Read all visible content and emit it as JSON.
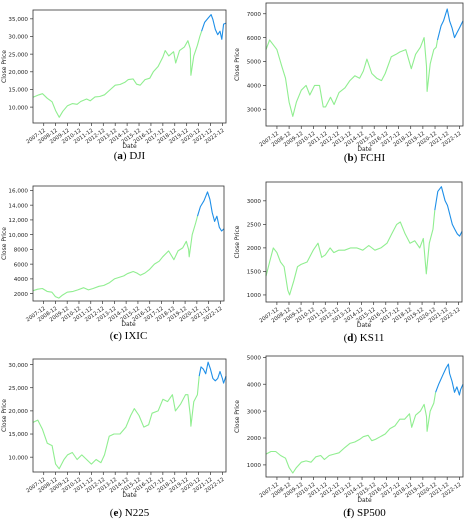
{
  "chart_data": [
    {
      "type": "line",
      "caption": {
        "letter": "a",
        "name": "DJI"
      },
      "xlabel": "Date",
      "ylabel": "Close Price",
      "x_ticks": [
        "2007-12",
        "2008-12",
        "2009-12",
        "2010-12",
        "2011-12",
        "2012-12",
        "2013-12",
        "2014-12",
        "2015-12",
        "2016-12",
        "2017-12",
        "2018-12",
        "2019-12",
        "2020-12",
        "2021-12",
        "2022-12"
      ],
      "y_ticks": [
        {
          "v": 10000,
          "label": "10,000"
        },
        {
          "v": 15000,
          "label": "15,000"
        },
        {
          "v": 20000,
          "label": "20,000"
        },
        {
          "v": 25000,
          "label": "25,000"
        },
        {
          "v": 30000,
          "label": "30,000"
        },
        {
          "v": 35000,
          "label": "35,000"
        }
      ],
      "xlim": [
        2007.0,
        2023.2
      ],
      "ylim": [
        5500,
        37500
      ],
      "series": [
        {
          "color": "#90ee90",
          "x": [
            2007.0,
            2007.5,
            2007.8,
            2008.2,
            2008.6,
            2008.9,
            2009.2,
            2009.5,
            2009.9,
            2010.3,
            2010.7,
            2011.0,
            2011.5,
            2011.8,
            2012.2,
            2012.6,
            2013.0,
            2013.5,
            2013.9,
            2014.3,
            2014.7,
            2015.0,
            2015.4,
            2015.7,
            2016.0,
            2016.4,
            2016.8,
            2017.1,
            2017.5,
            2017.9,
            2018.1,
            2018.4,
            2018.8,
            2018.98,
            2019.3,
            2019.7,
            2020.0,
            2020.2,
            2020.25,
            2020.5,
            2020.8,
            2021.0,
            2021.15
          ],
          "y": [
            12800,
            13500,
            13800,
            12500,
            11500,
            9000,
            7100,
            8800,
            10400,
            11000,
            10800,
            11600,
            12300,
            11800,
            12900,
            13000,
            13500,
            15000,
            16200,
            16400,
            17000,
            17800,
            18000,
            16500,
            16200,
            17800,
            18200,
            20000,
            21500,
            24200,
            26000,
            24500,
            25700,
            22500,
            26000,
            27000,
            28800,
            26500,
            19000,
            24500,
            27500,
            30000,
            31500
          ]
        },
        {
          "color": "#1e8fe8",
          "x": [
            2021.15,
            2021.4,
            2021.7,
            2021.95,
            2022.1,
            2022.3,
            2022.5,
            2022.7,
            2022.85,
            2023.0,
            2023.2
          ],
          "y": [
            31500,
            34000,
            35200,
            36200,
            34800,
            32000,
            30500,
            31500,
            29200,
            33500,
            33800
          ]
        }
      ]
    },
    {
      "type": "line",
      "caption": {
        "letter": "b",
        "name": "FCHI"
      },
      "xlabel": "Date",
      "ylabel": "Close Price",
      "x_ticks": [
        "2007-12",
        "2008-12",
        "2009-12",
        "2010-12",
        "2011-12",
        "2012-12",
        "2013-12",
        "2014-12",
        "2015-12",
        "2016-12",
        "2017-12",
        "2018-12",
        "2019-12",
        "2020-12",
        "2021-12",
        "2022-12"
      ],
      "y_ticks": [
        {
          "v": 3000,
          "label": "3000"
        },
        {
          "v": 4000,
          "label": "4000"
        },
        {
          "v": 5000,
          "label": "5000"
        },
        {
          "v": 6000,
          "label": "6000"
        },
        {
          "v": 7000,
          "label": "7000"
        }
      ],
      "xlim": [
        2007.0,
        2023.2
      ],
      "ylim": [
        2300,
        7450
      ],
      "series": [
        {
          "color": "#90ee90",
          "x": [
            2007.0,
            2007.3,
            2007.6,
            2007.9,
            2008.3,
            2008.6,
            2008.9,
            2009.2,
            2009.5,
            2009.9,
            2010.3,
            2010.6,
            2011.0,
            2011.4,
            2011.7,
            2011.9,
            2012.3,
            2012.6,
            2013.0,
            2013.5,
            2013.9,
            2014.3,
            2014.7,
            2015.0,
            2015.3,
            2015.7,
            2016.1,
            2016.5,
            2016.8,
            2017.3,
            2017.7,
            2018.0,
            2018.5,
            2018.95,
            2019.3,
            2019.7,
            2020.0,
            2020.2,
            2020.25,
            2020.5,
            2020.8,
            2021.0,
            2021.1
          ],
          "y": [
            5500,
            5900,
            5700,
            5500,
            4800,
            4300,
            3300,
            2700,
            3300,
            3800,
            4000,
            3600,
            4000,
            4000,
            3100,
            3100,
            3500,
            3200,
            3700,
            3900,
            4200,
            4400,
            4300,
            4600,
            5100,
            4500,
            4300,
            4200,
            4500,
            5200,
            5300,
            5400,
            5500,
            4700,
            5300,
            5600,
            6000,
            4800,
            3750,
            4900,
            5500,
            5600,
            5900
          ]
        },
        {
          "color": "#1e8fe8",
          "x": [
            2021.1,
            2021.4,
            2021.6,
            2021.9,
            2022.1,
            2022.3,
            2022.5,
            2022.7,
            2022.9,
            2023.1,
            2023.2
          ],
          "y": [
            5900,
            6500,
            6700,
            7200,
            6700,
            6400,
            6000,
            6200,
            6400,
            6600,
            6700
          ]
        }
      ]
    },
    {
      "type": "line",
      "caption": {
        "letter": "c",
        "name": "IXIC"
      },
      "xlabel": "Date",
      "ylabel": "Close Price",
      "x_ticks": [
        "2007-12",
        "2008-12",
        "2009-12",
        "2010-12",
        "2011-12",
        "2012-12",
        "2013-12",
        "2014-12",
        "2015-12",
        "2016-12",
        "2017-12",
        "2018-12",
        "2019-12",
        "2020-12",
        "2021-12",
        "2022-12"
      ],
      "y_ticks": [
        {
          "v": 2000,
          "label": "2000"
        },
        {
          "v": 4000,
          "label": "4000"
        },
        {
          "v": 6000,
          "label": "6000"
        },
        {
          "v": 8000,
          "label": "8000"
        },
        {
          "v": 10000,
          "label": "10,000"
        },
        {
          "v": 12000,
          "label": "12,000"
        },
        {
          "v": 14000,
          "label": "14,000"
        },
        {
          "v": 16000,
          "label": "16,000"
        }
      ],
      "xlim": [
        2007.0,
        2023.2
      ],
      "ylim": [
        1000,
        16600
      ],
      "series": [
        {
          "color": "#90ee90",
          "x": [
            2007.0,
            2007.4,
            2007.8,
            2008.2,
            2008.6,
            2008.9,
            2009.2,
            2009.5,
            2009.9,
            2010.4,
            2010.8,
            2011.3,
            2011.7,
            2012.1,
            2012.6,
            2013.0,
            2013.5,
            2013.9,
            2014.3,
            2014.7,
            2015.0,
            2015.5,
            2015.8,
            2016.1,
            2016.5,
            2016.9,
            2017.3,
            2017.7,
            2018.0,
            2018.5,
            2018.95,
            2019.3,
            2019.7,
            2020.0,
            2020.2,
            2020.25,
            2020.5,
            2020.8,
            2020.95
          ],
          "y": [
            2400,
            2600,
            2700,
            2300,
            2200,
            1600,
            1400,
            1800,
            2200,
            2300,
            2500,
            2800,
            2500,
            2700,
            3000,
            3100,
            3500,
            4000,
            4200,
            4400,
            4700,
            5000,
            4800,
            4500,
            4800,
            5300,
            6000,
            6400,
            7000,
            7800,
            6600,
            7800,
            8200,
            9100,
            8000,
            7000,
            10000,
            11600,
            12500
          ]
        },
        {
          "color": "#1e8fe8",
          "x": [
            2020.95,
            2021.2,
            2021.5,
            2021.8,
            2022.0,
            2022.2,
            2022.4,
            2022.6,
            2022.8,
            2023.0,
            2023.2
          ],
          "y": [
            12500,
            13800,
            14600,
            15800,
            14800,
            13000,
            11800,
            12500,
            11000,
            10500,
            10800
          ]
        }
      ]
    },
    {
      "type": "line",
      "caption": {
        "letter": "d",
        "name": "KS11"
      },
      "xlabel": "Date",
      "ylabel": "Close Price",
      "x_ticks": [
        "2007-12",
        "2008-12",
        "2009-12",
        "2010-12",
        "2011-12",
        "2012-12",
        "2013-12",
        "2014-12",
        "2015-12",
        "2016-12",
        "2017-12",
        "2018-12",
        "2019-12",
        "2020-12",
        "2021-12",
        "2022-12"
      ],
      "y_ticks": [
        {
          "v": 1000,
          "label": "1000"
        },
        {
          "v": 1500,
          "label": "1500"
        },
        {
          "v": 2000,
          "label": "2000"
        },
        {
          "v": 2500,
          "label": "2500"
        },
        {
          "v": 3000,
          "label": "3000"
        }
      ],
      "xlim": [
        2007.0,
        2023.2
      ],
      "ylim": [
        850,
        3400
      ],
      "series": [
        {
          "color": "#90ee90",
          "x": [
            2007.0,
            2007.3,
            2007.6,
            2007.9,
            2008.2,
            2008.5,
            2008.8,
            2008.95,
            2009.3,
            2009.6,
            2009.9,
            2010.4,
            2010.9,
            2011.3,
            2011.6,
            2011.9,
            2012.3,
            2012.6,
            2013.0,
            2013.5,
            2014.0,
            2014.5,
            2015.0,
            2015.5,
            2016.0,
            2016.5,
            2017.0,
            2017.4,
            2017.8,
            2018.1,
            2018.5,
            2018.9,
            2019.3,
            2019.7,
            2020.0,
            2020.2,
            2020.25,
            2020.5,
            2020.8,
            2020.95
          ],
          "y": [
            1400,
            1700,
            2000,
            1900,
            1700,
            1600,
            1100,
            1000,
            1300,
            1600,
            1650,
            1700,
            1950,
            2100,
            1800,
            1850,
            2000,
            1900,
            1950,
            1950,
            2000,
            2000,
            1950,
            2050,
            1950,
            2000,
            2100,
            2300,
            2500,
            2550,
            2300,
            2100,
            2150,
            2000,
            2200,
            1600,
            1450,
            2100,
            2400,
            2800
          ]
        },
        {
          "color": "#1e8fe8",
          "x": [
            2020.95,
            2021.2,
            2021.5,
            2021.8,
            2022.0,
            2022.2,
            2022.4,
            2022.6,
            2022.8,
            2023.0,
            2023.2
          ],
          "y": [
            2800,
            3200,
            3300,
            3000,
            2900,
            2700,
            2500,
            2400,
            2300,
            2250,
            2350
          ]
        }
      ]
    },
    {
      "type": "line",
      "caption": {
        "letter": "e",
        "name": "N225"
      },
      "xlabel": "Date",
      "ylabel": "Close Price",
      "x_ticks": [
        "2007-12",
        "2008-12",
        "2009-12",
        "2010-12",
        "2011-12",
        "2012-12",
        "2013-12",
        "2014-12",
        "2015-12",
        "2016-12",
        "2017-12",
        "2018-12",
        "2019-12",
        "2020-12",
        "2021-12",
        "2022-12"
      ],
      "y_ticks": [
        {
          "v": 10000,
          "label": "10,000"
        },
        {
          "v": 15000,
          "label": "15,000"
        },
        {
          "v": 20000,
          "label": "20,000"
        },
        {
          "v": 25000,
          "label": "25,000"
        },
        {
          "v": 30000,
          "label": "30,000"
        }
      ],
      "xlim": [
        2007.0,
        2023.2
      ],
      "ylim": [
        6800,
        31200
      ],
      "series": [
        {
          "color": "#90ee90",
          "x": [
            2007.0,
            2007.4,
            2007.8,
            2008.2,
            2008.6,
            2008.9,
            2009.2,
            2009.6,
            2009.9,
            2010.3,
            2010.7,
            2011.1,
            2011.5,
            2011.9,
            2012.3,
            2012.7,
            2013.0,
            2013.4,
            2013.8,
            2014.3,
            2014.8,
            2015.2,
            2015.5,
            2015.9,
            2016.3,
            2016.7,
            2017.0,
            2017.5,
            2017.9,
            2018.3,
            2018.7,
            2018.95,
            2019.4,
            2019.8,
            2020.0,
            2020.2,
            2020.25,
            2020.5,
            2020.8,
            2020.95
          ],
          "y": [
            17500,
            18000,
            16000,
            13000,
            12500,
            8500,
            7500,
            9500,
            10500,
            11000,
            9500,
            10500,
            9500,
            8500,
            9500,
            8800,
            10500,
            14500,
            15000,
            15000,
            16500,
            19000,
            20500,
            19000,
            16500,
            17000,
            19500,
            20000,
            22500,
            22000,
            23500,
            20000,
            21500,
            23500,
            23500,
            19000,
            16700,
            22000,
            23500,
            27500
          ]
        },
        {
          "color": "#1e8fe8",
          "x": [
            2020.95,
            2021.1,
            2021.3,
            2021.5,
            2021.7,
            2021.9,
            2022.1,
            2022.3,
            2022.5,
            2022.7,
            2022.9,
            2023.0,
            2023.2
          ],
          "y": [
            27500,
            29500,
            29000,
            28000,
            30500,
            29000,
            27000,
            26500,
            27000,
            28500,
            27000,
            26000,
            27500
          ]
        }
      ]
    },
    {
      "type": "line",
      "caption": {
        "letter": "f",
        "name": "SP500"
      },
      "xlabel": "Date",
      "ylabel": "Close Price",
      "x_ticks": [
        "2007-12",
        "2008-12",
        "2009-12",
        "2010-12",
        "2011-12",
        "2012-12",
        "2013-12",
        "2014-12",
        "2015-12",
        "2016-12",
        "2017-12",
        "2018-12",
        "2019-12",
        "2020-12",
        "2021-12",
        "2022-12"
      ],
      "y_ticks": [
        {
          "v": 1000,
          "label": "1000"
        },
        {
          "v": 2000,
          "label": "2000"
        },
        {
          "v": 3000,
          "label": "3000"
        },
        {
          "v": 4000,
          "label": "4000"
        },
        {
          "v": 5000,
          "label": "5000"
        }
      ],
      "xlim": [
        2007.0,
        2023.2
      ],
      "ylim": [
        550,
        5050
      ],
      "series": [
        {
          "color": "#90ee90",
          "x": [
            2007.0,
            2007.4,
            2007.8,
            2008.2,
            2008.6,
            2008.9,
            2009.2,
            2009.5,
            2009.9,
            2010.3,
            2010.7,
            2011.1,
            2011.5,
            2011.8,
            2012.2,
            2012.6,
            2013.0,
            2013.5,
            2013.9,
            2014.3,
            2014.7,
            2015.0,
            2015.4,
            2015.7,
            2016.0,
            2016.4,
            2016.8,
            2017.2,
            2017.6,
            2018.0,
            2018.4,
            2018.8,
            2018.98,
            2019.3,
            2019.7,
            2020.0,
            2020.2,
            2020.25,
            2020.5,
            2020.8,
            2020.95
          ],
          "y": [
            1400,
            1500,
            1500,
            1350,
            1250,
            900,
            700,
            900,
            1100,
            1150,
            1100,
            1300,
            1350,
            1200,
            1350,
            1400,
            1450,
            1650,
            1800,
            1850,
            1950,
            2050,
            2100,
            1900,
            1950,
            2050,
            2150,
            2350,
            2450,
            2700,
            2700,
            2900,
            2400,
            2850,
            3000,
            3250,
            2800,
            2250,
            3000,
            3300,
            3700
          ]
        },
        {
          "color": "#1e8fe8",
          "x": [
            2020.95,
            2021.2,
            2021.5,
            2021.8,
            2022.0,
            2022.1,
            2022.3,
            2022.5,
            2022.7,
            2022.9,
            2023.0,
            2023.2
          ],
          "y": [
            3700,
            4000,
            4300,
            4600,
            4750,
            4400,
            4100,
            3700,
            3900,
            3600,
            3800,
            4000
          ]
        }
      ]
    }
  ]
}
